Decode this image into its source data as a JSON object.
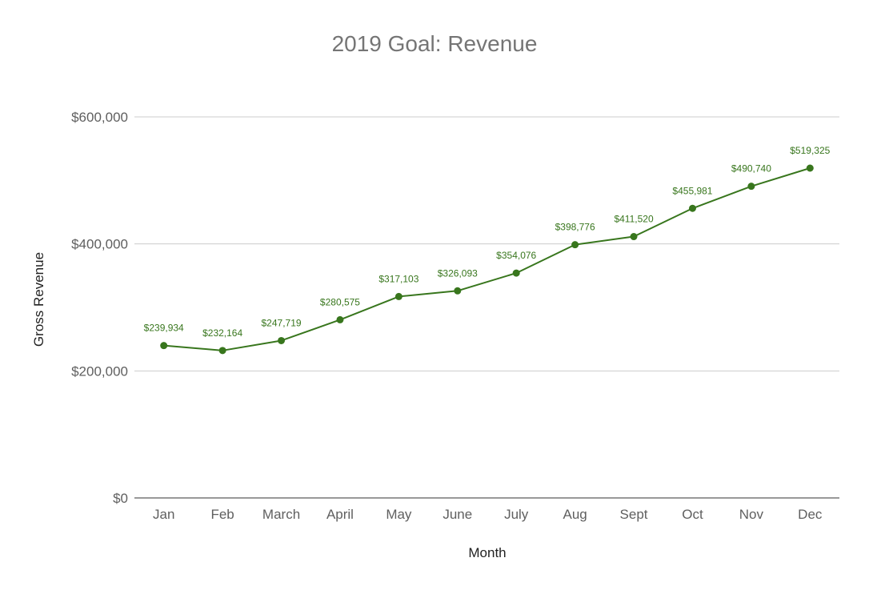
{
  "chart_data": {
    "type": "line",
    "title": "2019 Goal: Revenue",
    "xlabel": "Month",
    "ylabel": "Gross Revenue",
    "categories": [
      "Jan",
      "Feb",
      "March",
      "April",
      "May",
      "June",
      "July",
      "Aug",
      "Sept",
      "Oct",
      "Nov",
      "Dec"
    ],
    "series": [
      {
        "name": "Gross Revenue",
        "values": [
          239934,
          232164,
          247719,
          280575,
          317103,
          326093,
          354076,
          398776,
          411520,
          455981,
          490740,
          519325
        ],
        "labels": [
          "$239,934",
          "$232,164",
          "$247,719",
          "$280,575",
          "$317,103",
          "$326,093",
          "$354,076",
          "$398,776",
          "$411,520",
          "$455,981",
          "$490,740",
          "$519,325"
        ]
      }
    ],
    "ylim": [
      0,
      600000
    ],
    "yticks": [
      0,
      200000,
      400000,
      600000
    ],
    "ytick_labels": [
      "$0",
      "$200,000",
      "$400,000",
      "$600,000"
    ],
    "grid": true,
    "legend": "none",
    "colors": {
      "series": "#38761d",
      "grid": "#cccccc",
      "title": "#757575"
    }
  }
}
